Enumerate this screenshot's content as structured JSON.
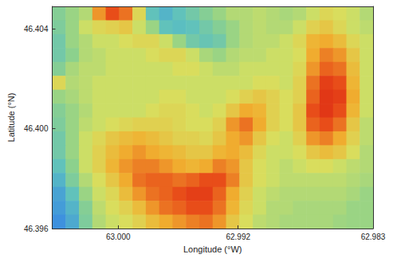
{
  "chart_data": {
    "type": "heatmap",
    "x_label": "Longitude (°W)",
    "y_label": "Latitude (°N)",
    "xlim": [
      63.0044,
      62.983
    ],
    "ylim": [
      46.396,
      46.4049
    ],
    "xticks": [
      {
        "value": 63.0,
        "label": "63.000"
      },
      62.992,
      62.983
    ],
    "yticks": [
      46.396,
      {
        "value": 46.4,
        "label": "46.400"
      },
      46.404
    ],
    "grid": false,
    "zlim": [
      0,
      100
    ],
    "z": [
      [
        40,
        45,
        50,
        75,
        85,
        80,
        60,
        30,
        25,
        30,
        35,
        40,
        45,
        50,
        50,
        52,
        50,
        48,
        50,
        55,
        60,
        58,
        55,
        50
      ],
      [
        38,
        45,
        55,
        60,
        62,
        65,
        55,
        45,
        30,
        28,
        30,
        35,
        40,
        45,
        50,
        52,
        50,
        50,
        55,
        62,
        65,
        60,
        55,
        52
      ],
      [
        35,
        45,
        50,
        55,
        55,
        58,
        60,
        60,
        55,
        45,
        35,
        32,
        35,
        45,
        50,
        52,
        52,
        55,
        60,
        70,
        72,
        68,
        60,
        55
      ],
      [
        35,
        42,
        50,
        52,
        55,
        55,
        55,
        58,
        60,
        60,
        55,
        48,
        45,
        50,
        52,
        52,
        55,
        55,
        58,
        72,
        78,
        75,
        65,
        55
      ],
      [
        40,
        48,
        52,
        52,
        55,
        55,
        55,
        55,
        55,
        58,
        58,
        55,
        52,
        52,
        55,
        55,
        55,
        55,
        60,
        75,
        82,
        80,
        68,
        55
      ],
      [
        60,
        50,
        52,
        55,
        55,
        55,
        55,
        55,
        55,
        55,
        55,
        55,
        55,
        55,
        55,
        58,
        58,
        55,
        62,
        80,
        88,
        85,
        70,
        55
      ],
      [
        45,
        48,
        52,
        55,
        55,
        55,
        55,
        55,
        58,
        58,
        55,
        55,
        55,
        58,
        62,
        65,
        62,
        58,
        62,
        82,
        90,
        88,
        72,
        55
      ],
      [
        40,
        45,
        50,
        55,
        55,
        55,
        55,
        58,
        60,
        60,
        58,
        55,
        58,
        65,
        72,
        70,
        62,
        58,
        65,
        85,
        90,
        85,
        70,
        55
      ],
      [
        38,
        45,
        52,
        55,
        58,
        60,
        62,
        62,
        62,
        60,
        58,
        58,
        62,
        75,
        80,
        72,
        62,
        58,
        65,
        82,
        85,
        80,
        65,
        52
      ],
      [
        35,
        45,
        55,
        60,
        65,
        68,
        70,
        68,
        65,
        62,
        62,
        60,
        65,
        72,
        75,
        65,
        58,
        55,
        62,
        75,
        78,
        72,
        62,
        52
      ],
      [
        35,
        45,
        55,
        62,
        68,
        72,
        75,
        72,
        70,
        68,
        65,
        65,
        70,
        72,
        68,
        60,
        55,
        55,
        58,
        65,
        68,
        65,
        58,
        50
      ],
      [
        30,
        42,
        55,
        62,
        70,
        75,
        78,
        78,
        75,
        72,
        70,
        72,
        78,
        75,
        65,
        58,
        55,
        52,
        55,
        58,
        58,
        55,
        52,
        50
      ],
      [
        25,
        38,
        50,
        58,
        65,
        72,
        80,
        82,
        82,
        80,
        82,
        85,
        85,
        78,
        65,
        58,
        55,
        52,
        52,
        52,
        52,
        52,
        50,
        48
      ],
      [
        20,
        30,
        45,
        55,
        60,
        68,
        75,
        80,
        82,
        85,
        88,
        88,
        82,
        72,
        62,
        55,
        52,
        50,
        50,
        50,
        50,
        50,
        48,
        45
      ],
      [
        18,
        25,
        40,
        52,
        58,
        62,
        68,
        75,
        80,
        82,
        85,
        85,
        80,
        70,
        60,
        55,
        50,
        50,
        48,
        48,
        48,
        48,
        45,
        45
      ],
      [
        15,
        22,
        38,
        50,
        55,
        58,
        62,
        68,
        72,
        75,
        78,
        80,
        75,
        65,
        58,
        52,
        50,
        48,
        48,
        48,
        48,
        46,
        45,
        45
      ]
    ]
  }
}
